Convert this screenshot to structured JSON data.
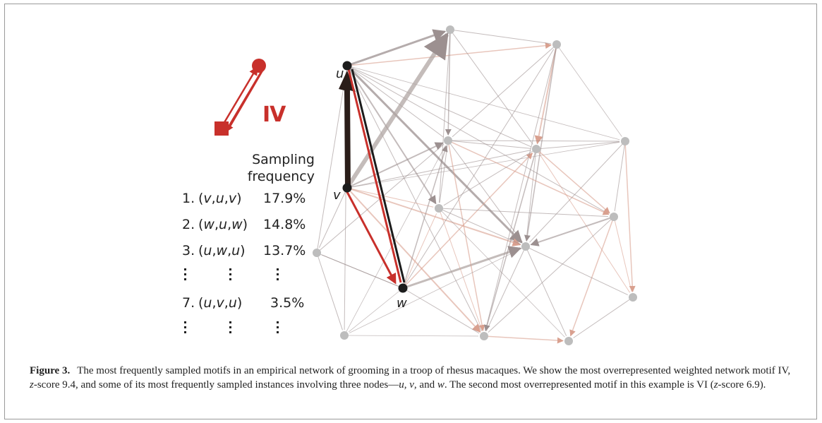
{
  "figure": {
    "motif_label": "IV",
    "node_labels": {
      "u": "u",
      "v": "v",
      "w": "w"
    },
    "colors": {
      "motif_red": "#c8302b",
      "dark_node": "#1c1c1c",
      "light_node": "#bdbdbd",
      "edge_gray": "#9c9090",
      "edge_pink": "#d9a08f"
    }
  },
  "sampling": {
    "title_line1": "Sampling",
    "title_line2": "frequency",
    "rows": [
      {
        "num": "1.",
        "tuple_open": "(",
        "a": "v",
        "b": "u",
        "c": "v",
        "tuple_close": ")",
        "pct": "17.9%"
      },
      {
        "num": "2.",
        "tuple_open": "(",
        "a": "w",
        "b": "u",
        "c": "w",
        "tuple_close": ")",
        "pct": "14.8%"
      },
      {
        "num": "3.",
        "tuple_open": "(",
        "a": "u",
        "b": "w",
        "c": "u",
        "tuple_close": ")",
        "pct": "13.7%"
      },
      {
        "num": "7.",
        "tuple_open": "(",
        "a": "u",
        "b": "v",
        "c": "u",
        "tuple_close": ")",
        "pct": "3.5%"
      }
    ]
  },
  "caption": {
    "label": "Figure 3.",
    "text1": "The most frequently sampled motifs in an empirical network of grooming in a troop of rhesus macaques. We show the most overrepresented weighted network motif IV, ",
    "z": "z",
    "text2": "-score 9.4, and some of its most frequently sampled instances involving three nodes—",
    "u": "u",
    "sep1": ", ",
    "v": "v",
    "sep2": ", and ",
    "w": "w",
    "text3": ". The second most overrepresented motif in this example is VI (",
    "z2": "z",
    "text4": "-score 6.9)."
  }
}
